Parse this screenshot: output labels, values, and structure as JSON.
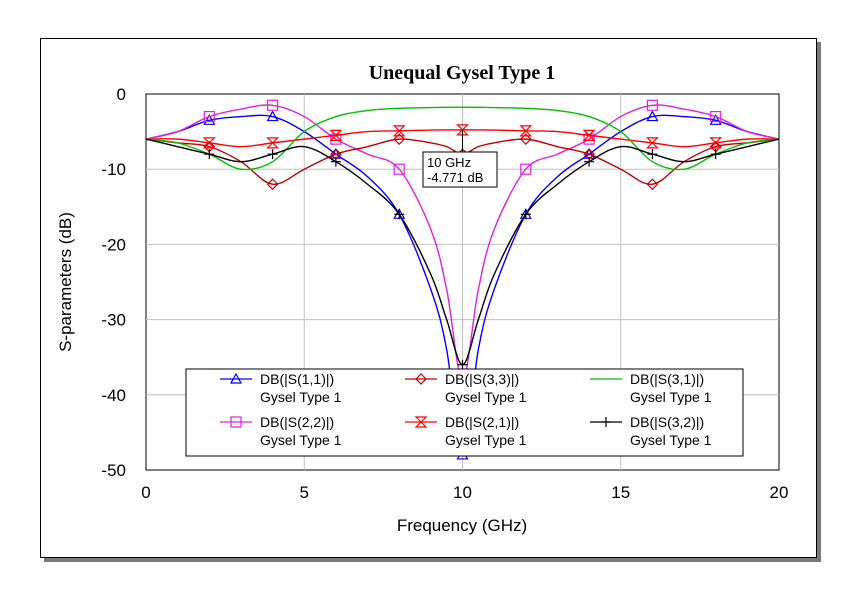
{
  "chart_data": {
    "type": "line",
    "title": "Unequal Gysel Type 1",
    "xlabel": "Frequency (GHz)",
    "ylabel": "S-parameters (dB)",
    "xlim": [
      0,
      20
    ],
    "ylim": [
      -50,
      0
    ],
    "xticks": [
      "0",
      "5",
      "10",
      "15",
      "20"
    ],
    "yticks": [
      "0",
      "-10",
      "-20",
      "-30",
      "-40",
      "-50"
    ],
    "grid": true,
    "legend_position": "bottom-center, inside plot",
    "x": [
      0,
      1,
      2,
      3,
      4,
      5,
      6,
      7,
      8,
      9,
      9.5,
      10,
      10.5,
      11,
      12,
      13,
      14,
      15,
      16,
      17,
      18,
      19,
      20
    ],
    "series": [
      {
        "name": "DB(|S(1,1)|)",
        "sub": "Gysel Type 1",
        "color": "#0000ff",
        "marker": "triangle",
        "values": [
          -6,
          -5,
          -3.5,
          -3,
          -3,
          -5,
          -8,
          -11,
          -16,
          -26,
          -34,
          -48,
          -34,
          -26,
          -16,
          -11,
          -8,
          -5,
          -3,
          -3,
          -3.5,
          -5,
          -6
        ]
      },
      {
        "name": "DB(|S(2,2)|)",
        "sub": "Gysel Type 1",
        "color": "#e020e0",
        "marker": "square",
        "values": [
          -6,
          -5,
          -3,
          -2,
          -1.5,
          -3,
          -6,
          -8,
          -10,
          -18,
          -26,
          -38,
          -26,
          -18,
          -10,
          -8,
          -6,
          -3,
          -1.5,
          -2,
          -3,
          -5,
          -6
        ]
      },
      {
        "name": "DB(|S(3,3)|)",
        "sub": "Gysel Type 1",
        "color": "#c00000",
        "marker": "diamond",
        "values": [
          -6,
          -6.5,
          -7,
          -9,
          -12,
          -10,
          -8,
          -7,
          -6,
          -6.5,
          -7,
          -8,
          -7,
          -6.5,
          -6,
          -7,
          -8,
          -10,
          -12,
          -9,
          -7,
          -6.5,
          -6
        ]
      },
      {
        "name": "DB(|S(2,1)|)",
        "sub": "Gysel Type 1",
        "color": "#ff0000",
        "marker": "hourglass",
        "values": [
          -6,
          -6,
          -6.5,
          -7,
          -6.5,
          -6,
          -5.5,
          -5,
          -4.9,
          -4.8,
          -4.78,
          -4.771,
          -4.78,
          -4.8,
          -4.9,
          -5,
          -5.5,
          -6,
          -6.5,
          -7,
          -6.5,
          -6,
          -6
        ]
      },
      {
        "name": "DB(|S(3,1)|)",
        "sub": "Gysel Type 1",
        "color": "#00c000",
        "marker": "none",
        "values": [
          -6,
          -6.5,
          -8,
          -10,
          -9,
          -5,
          -3,
          -2.2,
          -1.9,
          -1.8,
          -1.77,
          -1.76,
          -1.77,
          -1.8,
          -1.9,
          -2.2,
          -3,
          -5,
          -9,
          -10,
          -8,
          -6.5,
          -6
        ]
      },
      {
        "name": "DB(|S(3,2)|)",
        "sub": "Gysel Type 1",
        "color": "#000000",
        "marker": "cross",
        "values": [
          -6,
          -7,
          -8,
          -9,
          -8,
          -7,
          -9,
          -12,
          -16,
          -24,
          -30,
          -36,
          -30,
          -24,
          -16,
          -12,
          -9,
          -7,
          -8,
          -9,
          -8,
          -7,
          -6
        ]
      }
    ],
    "annotation": {
      "x": 10,
      "y": -4.771,
      "line1": "10 GHz",
      "line2": "-4.771 dB"
    }
  }
}
